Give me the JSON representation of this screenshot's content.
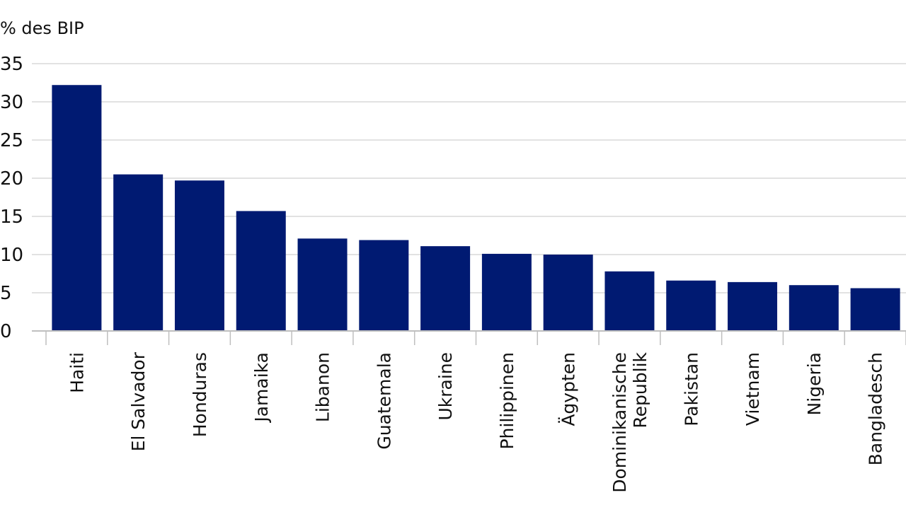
{
  "chart_data": {
    "type": "bar",
    "title": "",
    "xlabel": "",
    "ylabel": "% des BIP",
    "ylim": [
      0,
      35
    ],
    "yticks": [
      0,
      5,
      10,
      15,
      20,
      25,
      30,
      35
    ],
    "grid": true,
    "legend": "none",
    "categories": [
      "Haiti",
      "El Salvador",
      "Honduras",
      "Jamaika",
      "Libanon",
      "Guatemala",
      "Ukraine",
      "Philippinen",
      "Ägypten",
      "Dominikanische Republik",
      "Pakistan",
      "Vietnam",
      "Nigeria",
      "Bangladesch"
    ],
    "category_lines": [
      [
        "Haiti"
      ],
      [
        "El Salvador"
      ],
      [
        "Honduras"
      ],
      [
        "Jamaika"
      ],
      [
        "Libanon"
      ],
      [
        "Guatemala"
      ],
      [
        "Ukraine"
      ],
      [
        "Philippinen"
      ],
      [
        "Ägypten"
      ],
      [
        "Dominikanische",
        "Republik"
      ],
      [
        "Pakistan"
      ],
      [
        "Vietnam"
      ],
      [
        "Nigeria"
      ],
      [
        "Bangladesch"
      ]
    ],
    "values": [
      32.2,
      20.5,
      19.7,
      15.7,
      12.1,
      11.9,
      11.1,
      10.1,
      10.0,
      7.8,
      6.6,
      6.4,
      6.0,
      5.6
    ],
    "colors": {
      "bar": "#001a72",
      "grid": "#d9d9d9",
      "axis": "#bfbfbf",
      "text": "#111111"
    }
  }
}
